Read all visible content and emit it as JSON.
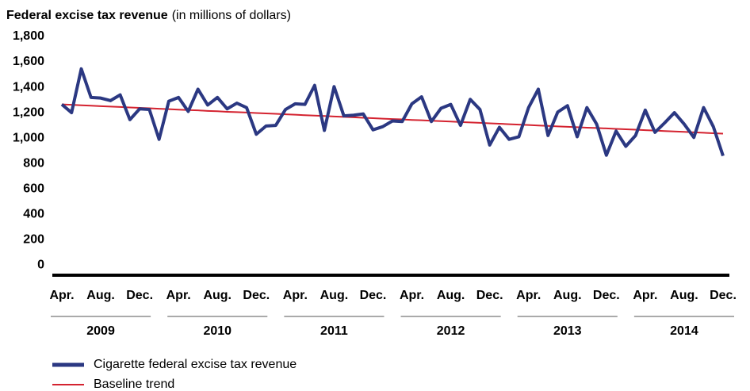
{
  "chart_data": {
    "type": "line",
    "title": "Federal excise tax revenue",
    "subtitle": "(in millions of dollars)",
    "categories": [
      "Apr.",
      null,
      null,
      null,
      "Aug.",
      null,
      null,
      null,
      "Dec.",
      null,
      null,
      null,
      "Apr.",
      null,
      null,
      null,
      "Aug.",
      null,
      null,
      null,
      "Dec.",
      null,
      null,
      null,
      "Apr.",
      null,
      null,
      null,
      "Aug.",
      null,
      null,
      null,
      "Dec.",
      null,
      null,
      null,
      "Apr.",
      null,
      null,
      null,
      "Aug.",
      null,
      null,
      null,
      "Dec.",
      null,
      null,
      null,
      "Apr.",
      null,
      null,
      null,
      "Aug.",
      null,
      null,
      null,
      "Dec.",
      null,
      null,
      null,
      "Apr.",
      null,
      null,
      null,
      "Aug.",
      null,
      null,
      null,
      "Dec."
    ],
    "year_labels": [
      "2009",
      "2010",
      "2011",
      "2012",
      "2013",
      "2014"
    ],
    "series": [
      {
        "name": "Cigarette federal excise tax revenue",
        "color": "#2b3882",
        "values": [
          1265,
          1200,
          1545,
          1320,
          1315,
          1295,
          1340,
          1145,
          1230,
          1225,
          990,
          1290,
          1320,
          1210,
          1385,
          1260,
          1320,
          1230,
          1275,
          1240,
          1030,
          1095,
          1100,
          1225,
          1270,
          1265,
          1415,
          1060,
          1405,
          1175,
          1180,
          1190,
          1065,
          1090,
          1135,
          1130,
          1270,
          1325,
          1130,
          1235,
          1265,
          1100,
          1305,
          1225,
          945,
          1085,
          990,
          1010,
          1240,
          1385,
          1020,
          1205,
          1255,
          1010,
          1240,
          1110,
          865,
          1055,
          935,
          1020,
          1220,
          1045,
          1120,
          1200,
          1110,
          1005,
          1240,
          1090,
          860
        ]
      },
      {
        "name": "Baseline trend",
        "color": "#d42330",
        "values": [
          1265,
          1262,
          1258,
          1255,
          1251,
          1248,
          1245,
          1241,
          1238,
          1235,
          1231,
          1228,
          1224,
          1221,
          1218,
          1214,
          1211,
          1207,
          1204,
          1201,
          1197,
          1194,
          1191,
          1187,
          1184,
          1180,
          1177,
          1174,
          1170,
          1167,
          1164,
          1160,
          1157,
          1153,
          1150,
          1147,
          1143,
          1140,
          1136,
          1133,
          1130,
          1126,
          1123,
          1120,
          1116,
          1113,
          1109,
          1106,
          1103,
          1099,
          1096,
          1092,
          1089,
          1086,
          1082,
          1079,
          1076,
          1072,
          1069,
          1066,
          1062,
          1059,
          1055,
          1052,
          1049,
          1045,
          1042,
          1038,
          1035
        ]
      }
    ],
    "ylim": [
      -80,
      1800
    ],
    "yticks": [
      0,
      200,
      400,
      600,
      800,
      {
        "value": 1000,
        "label": "1,000"
      },
      {
        "value": 1200,
        "label": "1,200"
      },
      {
        "value": 1400,
        "label": "1,400"
      },
      {
        "value": 1600,
        "label": "1,600"
      },
      {
        "value": 1800,
        "label": "1,800"
      }
    ],
    "grid": false
  }
}
